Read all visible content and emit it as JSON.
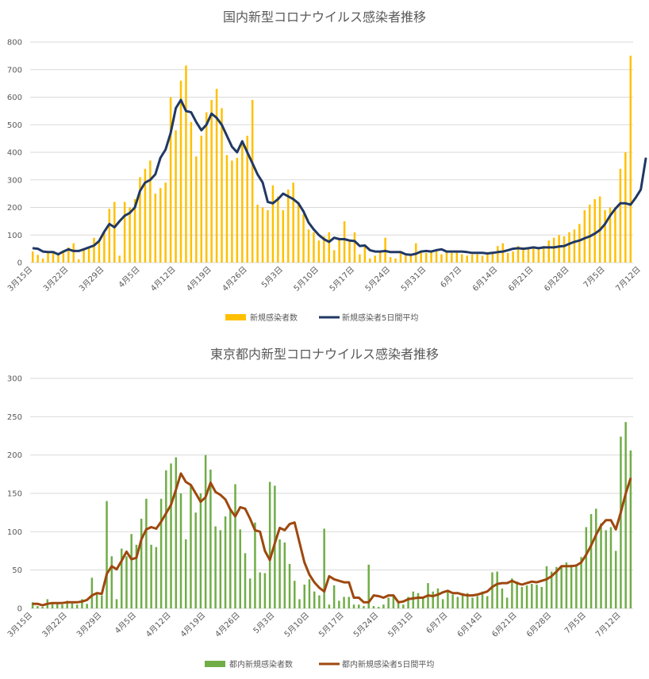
{
  "chart_data": [
    {
      "type": "bar",
      "title": "国内新型コロナウイルス感染者推移",
      "xlabel": "",
      "ylabel": "",
      "ylim": [
        0,
        800
      ],
      "yticks": [
        "0",
        "100",
        "200",
        "300",
        "400",
        "500",
        "600",
        "700",
        "800"
      ],
      "x_ticks": [
        "3月15日",
        "3月22日",
        "3月29日",
        "4月5日",
        "4月12日",
        "4月19日",
        "4月26日",
        "5月3日",
        "5月10日",
        "5月17日",
        "5月24日",
        "5月31日",
        "6月7日",
        "6月14日",
        "6月21日",
        "6月28日",
        "7月5日",
        "7月12日"
      ],
      "grid": true,
      "legend_position": "bottom",
      "series": [
        {
          "name": "新規感染者数",
          "type": "bar",
          "color": "#ffc000",
          "values": [
            40,
            28,
            15,
            38,
            35,
            28,
            45,
            55,
            70,
            12,
            45,
            55,
            90,
            80,
            110,
            195,
            220,
            25,
            220,
            200,
            230,
            310,
            340,
            370,
            250,
            270,
            290,
            600,
            480,
            660,
            715,
            510,
            385,
            460,
            545,
            590,
            630,
            560,
            390,
            370,
            380,
            430,
            460,
            590,
            210,
            200,
            190,
            280,
            240,
            190,
            265,
            290,
            220,
            175,
            120,
            110,
            80,
            95,
            110,
            45,
            90,
            150,
            80,
            110,
            30,
            65,
            15,
            25,
            40,
            90,
            20,
            15,
            35,
            25,
            30,
            70,
            40,
            35,
            40,
            40,
            30,
            40,
            35,
            40,
            30,
            25,
            30,
            30,
            25,
            35,
            40,
            60,
            70,
            35,
            40,
            60,
            55,
            50,
            55,
            55,
            60,
            80,
            90,
            100,
            95,
            110,
            120,
            140,
            190,
            210,
            230,
            240,
            190,
            200,
            200,
            340,
            400,
            750
          ]
        },
        {
          "name": "新規感染者5日間平均",
          "type": "line",
          "color": "#203864",
          "values": [
            52,
            50,
            40,
            38,
            38,
            30,
            40,
            48,
            42,
            42,
            48,
            55,
            62,
            78,
            112,
            140,
            128,
            150,
            170,
            180,
            200,
            260,
            290,
            300,
            320,
            380,
            410,
            470,
            560,
            590,
            550,
            545,
            510,
            480,
            500,
            540,
            525,
            500,
            460,
            420,
            400,
            440,
            400,
            360,
            320,
            290,
            220,
            215,
            230,
            250,
            240,
            230,
            215,
            185,
            145,
            120,
            100,
            85,
            75,
            90,
            85,
            85,
            80,
            78,
            60,
            62,
            45,
            40,
            40,
            42,
            38,
            38,
            38,
            30,
            28,
            32,
            40,
            42,
            40,
            45,
            48,
            40,
            40,
            40,
            40,
            38,
            35,
            35,
            35,
            33,
            35,
            38,
            40,
            45,
            50,
            52,
            50,
            52,
            55,
            52,
            55,
            55,
            55,
            58,
            60,
            68,
            75,
            80,
            88,
            95,
            105,
            118,
            140,
            170,
            195,
            215,
            215,
            210,
            235,
            265,
            380
          ]
        }
      ]
    },
    {
      "type": "bar",
      "title": "東京都内新型コロナウイルス感染者推移",
      "xlabel": "",
      "ylabel": "",
      "ylim": [
        0,
        300
      ],
      "yticks": [
        "0",
        "50",
        "100",
        "150",
        "200",
        "250",
        "300"
      ],
      "x_ticks": [
        "3月15日",
        "3月22日",
        "3月29日",
        "4月5日",
        "4月12日",
        "4月19日",
        "4月26日",
        "5月3日",
        "5月10日",
        "5月17日",
        "5月24日",
        "5月31日",
        "6月7日",
        "6月14日",
        "6月21日",
        "6月28日",
        "7月5日",
        "7月12日"
      ],
      "grid": true,
      "legend_position": "bottom",
      "series": [
        {
          "name": "都内新規感染者数",
          "type": "bar",
          "color": "#70ad47",
          "values": [
            8,
            3,
            2,
            12,
            8,
            6,
            5,
            10,
            7,
            5,
            12,
            6,
            40,
            20,
            17,
            140,
            68,
            12,
            78,
            68,
            97,
            83,
            117,
            143,
            83,
            80,
            143,
            180,
            189,
            197,
            150,
            90,
            160,
            125,
            150,
            200,
            181,
            107,
            102,
            120,
            130,
            162,
            103,
            72,
            39,
            112,
            47,
            46,
            165,
            160,
            90,
            86,
            58,
            36,
            12,
            31,
            38,
            22,
            17,
            104,
            5,
            30,
            10,
            15,
            15,
            5,
            5,
            3,
            57,
            3,
            2,
            5,
            14,
            17,
            10,
            5,
            15,
            22,
            20,
            13,
            33,
            22,
            26,
            12,
            24,
            18,
            15,
            20,
            20,
            14,
            16,
            22,
            16,
            47,
            48,
            26,
            14,
            39,
            35,
            28,
            30,
            32,
            31,
            28,
            55,
            48,
            54,
            55,
            60,
            57,
            55,
            67,
            106,
            123,
            130,
            111,
            102,
            106,
            75,
            224,
            243,
            206
          ]
        },
        {
          "name": "都内新規感染者5日間平均",
          "type": "line",
          "color": "#9e480e",
          "values": [
            6,
            6,
            4,
            6,
            7,
            7,
            7,
            8,
            8,
            8,
            9,
            11,
            17,
            20,
            19,
            45,
            55,
            51,
            62,
            74,
            64,
            66,
            90,
            103,
            106,
            104,
            113,
            124,
            135,
            155,
            176,
            165,
            161,
            150,
            139,
            145,
            164,
            152,
            148,
            142,
            129,
            120,
            132,
            130,
            117,
            102,
            100,
            75,
            63,
            85,
            105,
            102,
            110,
            112,
            86,
            60,
            44,
            34,
            27,
            22,
            42,
            38,
            36,
            34,
            34,
            14,
            14,
            8,
            8,
            17,
            16,
            14,
            17,
            17,
            8,
            9,
            12,
            13,
            14,
            14,
            17,
            16,
            18,
            21,
            23,
            20,
            20,
            18,
            17,
            17,
            18,
            20,
            22,
            28,
            32,
            33,
            33,
            36,
            33,
            31,
            33,
            35,
            34,
            36,
            38,
            42,
            48,
            55,
            55,
            55,
            56,
            60,
            70,
            82,
            96,
            108,
            115,
            115,
            103,
            125,
            150,
            170
          ]
        }
      ]
    }
  ]
}
